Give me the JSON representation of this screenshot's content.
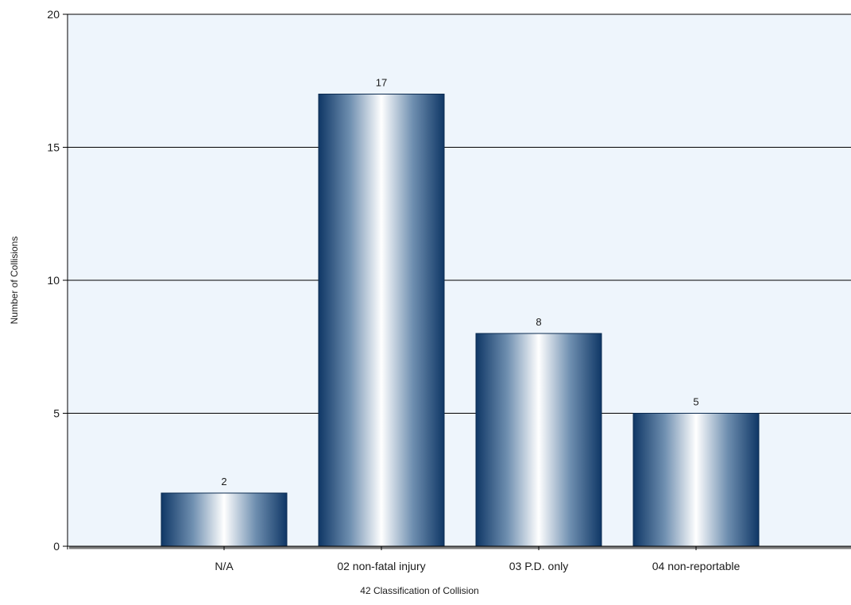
{
  "chart_data": {
    "type": "bar",
    "title": "",
    "xlabel": "42 Classification of Collision",
    "ylabel": "Number of Collisions",
    "categories": [
      "N/A",
      "02 non-fatal injury",
      "03 P.D. only",
      "04 non-reportable"
    ],
    "values": [
      2,
      17,
      8,
      5
    ],
    "data_labels": [
      "2",
      "17",
      "8",
      "5"
    ],
    "ylim": [
      0,
      20
    ],
    "yticks": [
      0,
      5,
      10,
      15,
      20
    ],
    "ytick_labels": [
      "0",
      "5",
      "10",
      "15",
      "20"
    ],
    "grid": true,
    "legend": "none",
    "colors": {
      "plot_background": "#eef5fc",
      "bar_dark": "#0f3766",
      "bar_mid": "#6f8fb0",
      "bar_light": "#ffffff",
      "gridline": "#000000",
      "axis": "#000000",
      "baseline_shadow": "#7a7a7a"
    }
  }
}
